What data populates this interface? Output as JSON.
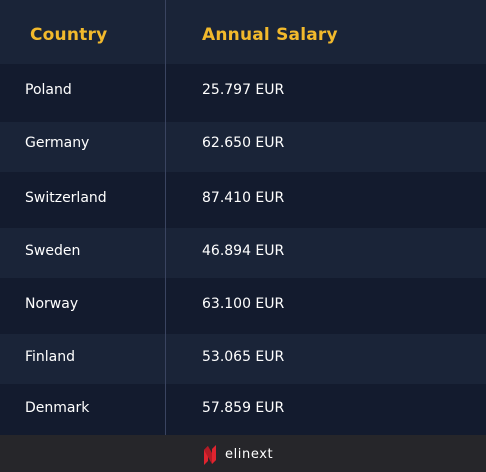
{
  "table": {
    "headers": {
      "country": "Country",
      "salary": "Annual Salary"
    },
    "rows": [
      {
        "country": "Poland",
        "salary": "25.797 EUR"
      },
      {
        "country": "Germany",
        "salary": "62.650 EUR"
      },
      {
        "country": "Switzerland",
        "salary": "87.410 EUR"
      },
      {
        "country": "Sweden",
        "salary": "46.894 EUR"
      },
      {
        "country": "Norway",
        "salary": "63.100 EUR"
      },
      {
        "country": "Finland",
        "salary": "53.065 EUR"
      },
      {
        "country": "Denmark",
        "salary": "57.859 EUR"
      }
    ]
  },
  "footer": {
    "brand": "elinext",
    "logo_icon": "elinext-logo-icon"
  },
  "colors": {
    "background": "#131b2e",
    "row_alt": "#1a2438",
    "header_text": "#f2b92c",
    "footer_bg": "#26262a",
    "logo_accent": "#e0242f"
  }
}
